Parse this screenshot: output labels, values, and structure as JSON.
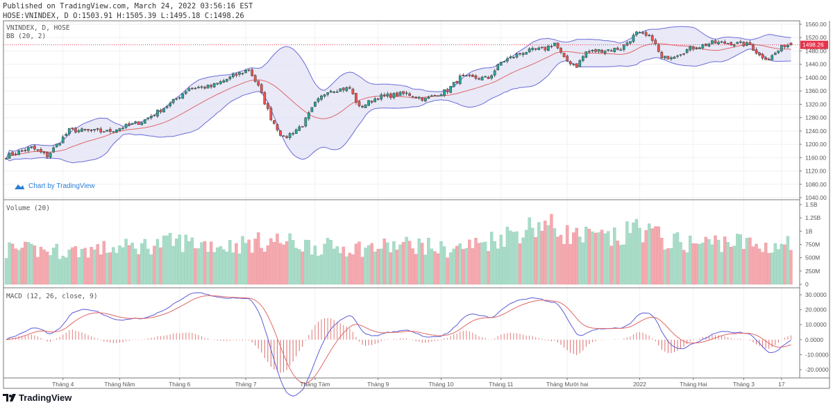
{
  "header": {
    "published": "Published on TradingView.com, March 24, 2022 03:56:16 EST",
    "ohlc": "HOSE:VNINDEX, D O:1503.91 H:1505.39 L:1495.18 C:1498.26"
  },
  "panes": {
    "main_legend": "VNINDEX, D, HOSE",
    "bb_legend": "BB (20, 2)",
    "volume_legend": "Volume (20)",
    "macd_legend": "MACD (12, 26, close, 9)",
    "watermark": "Chart by TradingView"
  },
  "footer": {
    "brand": "TradingView"
  },
  "colors": {
    "up": "#26a69a",
    "down": "#ef5350",
    "vol_up": "#a9dcc8",
    "vol_down": "#f5a9ae",
    "bb_band": "#6a6ad8",
    "bb_basis": "#e06666",
    "bb_fill": "#e3e3f5",
    "macd": "#5b5bd6",
    "signal": "#e06666",
    "last_price": "#e5334b"
  },
  "chart_data": {
    "type": "candlestick",
    "symbol": "HOSE:VNINDEX",
    "interval": "D",
    "bars": 250,
    "last": {
      "open": 1503.91,
      "high": 1505.39,
      "low": 1495.18,
      "close": 1498.26,
      "label": "1498.26"
    },
    "close_anchors": [
      [
        0,
        1165
      ],
      [
        8,
        1190
      ],
      [
        13,
        1165
      ],
      [
        20,
        1242
      ],
      [
        32,
        1238
      ],
      [
        43,
        1268
      ],
      [
        52,
        1321
      ],
      [
        58,
        1369
      ],
      [
        65,
        1373
      ],
      [
        72,
        1404
      ],
      [
        77,
        1425
      ],
      [
        80,
        1373
      ],
      [
        84,
        1279
      ],
      [
        88,
        1217
      ],
      [
        94,
        1258
      ],
      [
        98,
        1321
      ],
      [
        102,
        1362
      ],
      [
        109,
        1368
      ],
      [
        112,
        1310
      ],
      [
        118,
        1342
      ],
      [
        127,
        1352
      ],
      [
        133,
        1335
      ],
      [
        140,
        1362
      ],
      [
        144,
        1400
      ],
      [
        153,
        1398
      ],
      [
        157,
        1446
      ],
      [
        164,
        1477
      ],
      [
        171,
        1487
      ],
      [
        174,
        1504
      ],
      [
        177,
        1456
      ],
      [
        181,
        1435
      ],
      [
        184,
        1477
      ],
      [
        188,
        1481
      ],
      [
        195,
        1487
      ],
      [
        200,
        1533
      ],
      [
        205,
        1518
      ],
      [
        208,
        1456
      ],
      [
        213,
        1471
      ],
      [
        217,
        1487
      ],
      [
        224,
        1504
      ],
      [
        230,
        1504
      ],
      [
        236,
        1498
      ],
      [
        239,
        1466
      ],
      [
        242,
        1456
      ],
      [
        247,
        1498
      ],
      [
        249,
        1498.26
      ]
    ],
    "volume_anchors_M": [
      [
        0,
        650
      ],
      [
        20,
        620
      ],
      [
        40,
        700
      ],
      [
        55,
        800
      ],
      [
        70,
        720
      ],
      [
        85,
        820
      ],
      [
        100,
        700
      ],
      [
        115,
        680
      ],
      [
        130,
        750
      ],
      [
        140,
        640
      ],
      [
        150,
        760
      ],
      [
        160,
        950
      ],
      [
        170,
        1150
      ],
      [
        180,
        900
      ],
      [
        195,
        850
      ],
      [
        200,
        1100
      ],
      [
        210,
        800
      ],
      [
        220,
        760
      ],
      [
        230,
        820
      ],
      [
        240,
        700
      ],
      [
        249,
        780
      ]
    ],
    "price_axis": {
      "ticks": [
        "1560.00",
        "1520.00",
        "1480.00",
        "1440.00",
        "1400.00",
        "1360.00",
        "1320.00",
        "1280.00",
        "1240.00",
        "1200.00",
        "1160.00",
        "1120.00",
        "1080.00",
        "1040.00"
      ],
      "range": [
        1040,
        1560
      ]
    },
    "volume_axis": {
      "ticks": [
        "1.5B",
        "1.25B",
        "1B",
        "750M",
        "500M",
        "250M",
        "0"
      ],
      "range_M": [
        0,
        1500
      ]
    },
    "macd_axis": {
      "ticks": [
        "30.0000",
        "20.0000",
        "10.0000",
        "0.0000",
        "-10.0000",
        "-20.0000"
      ],
      "range": [
        -27,
        32
      ]
    },
    "time_axis": [
      {
        "label": "Tháng 4",
        "bar": 18
      },
      {
        "label": "Tháng Năm",
        "bar": 36
      },
      {
        "label": "Tháng 6",
        "bar": 55
      },
      {
        "label": "Tháng 7",
        "bar": 76
      },
      {
        "label": "Tháng Tám",
        "bar": 98
      },
      {
        "label": "Tháng 9",
        "bar": 118
      },
      {
        "label": "Tháng 10",
        "bar": 138
      },
      {
        "label": "Tháng 11",
        "bar": 157
      },
      {
        "label": "Tháng Mười hai",
        "bar": 178
      },
      {
        "label": "2022",
        "bar": 201
      },
      {
        "label": "Tháng Hai",
        "bar": 218
      },
      {
        "label": "Tháng 3",
        "bar": 234
      },
      {
        "label": "17",
        "bar": 246
      }
    ],
    "indicators": {
      "bb": {
        "length": 20,
        "mult": 2
      },
      "macd": {
        "fast": 12,
        "slow": 26,
        "signal": 9
      }
    }
  }
}
